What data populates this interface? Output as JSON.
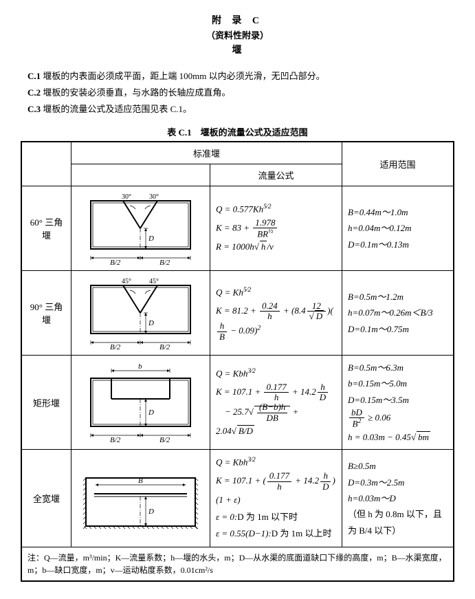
{
  "header": {
    "line1": "附 录 C",
    "line2": "（资料性附录）",
    "line3": "堰"
  },
  "clauses": [
    {
      "num": "C.1",
      "text": "堰板的内表面必须成平面，距上端 100mm 以内必须光滑，无凹凸部分。"
    },
    {
      "num": "C.2",
      "text": "堰板的安装必须垂直，与水路的长轴应成直角。"
    },
    {
      "num": "C.3",
      "text": "堰板的流量公式及适应范围见表 C.1。"
    }
  ],
  "table_title": "表 C.1　堰板的流量公式及适应范围",
  "columns": {
    "c1": "",
    "c2": "标准堰",
    "c3": "流量公式",
    "c4": "适用范围"
  },
  "rows": [
    {
      "label": "60° 三角堰",
      "diagram": {
        "type": "vnotch",
        "angle_label_left": "30°",
        "angle_label_right": "30°",
        "h_label": "D",
        "b_label_left": "B/2",
        "b_label_right": "B/2"
      },
      "formulas_html": "Q = 0.577Kh<sup>5⁄2</sup><br>K = 83 + <span class='frac'><span class='num'>1.978</span><span class='den'>BR<sup>½</sup></span></span><br>R = 1000h<span class='radic'>√</span><span class='sqrt'>h</span>/v",
      "range_html": "B=0.44m～1.0m<br>h=0.04m～0.12m<br>D=0.1m～0.13m"
    },
    {
      "label": "90° 三角堰",
      "diagram": {
        "type": "vnotch",
        "angle_label_left": "45°",
        "angle_label_right": "45°",
        "h_label": "D",
        "b_label_left": "B/2",
        "b_label_right": "B/2"
      },
      "formulas_html": "Q = Kh<sup>5⁄2</sup><br>K = 81.2 + <span class='frac'><span class='num'>0.24</span><span class='den'>h</span></span> + (8.4<span class='frac'><span class='num'>12</span><span class='den'><span class='radic'>√</span><span class='sqrt'>D</span></span></span>)(<span class='frac'><span class='num'>h</span><span class='den'>B</span></span> − 0.09)<sup>2</sup>",
      "range_html": "B=0.5m～1.2m<br>h=0.07m～0.26m＜B/3<br>D=0.1m～0.75m"
    },
    {
      "label": "矩形堰",
      "diagram": {
        "type": "rect",
        "top_label": "b",
        "h_label": "D",
        "b_label_left": "B/2",
        "b_label_right": "B/2"
      },
      "formulas_html": "Q = Kbh<sup>3⁄2</sup><br>K = 107.1 + <span class='frac'><span class='num'>0.177</span><span class='den'>h</span></span> + 14.2<span class='frac'><span class='num'>h</span><span class='den'>D</span></span><br>&nbsp;&nbsp;&nbsp;&nbsp;− 25.7<span class='radic'>√</span><span class='sqrt'><span class='frac'><span class='num'>(B−b)h</span><span class='den'>DB</span></span></span> + 2.04<span class='radic'>√</span><span class='sqrt'>B/D</span>",
      "range_html": "B=0.5m～6.3m<br>b=0.15m～5.0m<br>D=0.15m～3.5m<br><span class='frac'><span class='num'>bD</span><span class='den'>B<sup>2</sup></span></span> ≥ 0.06<br>h = 0.03m − 0.45<span class='radic'>√</span><span class='sqrt'>bm</span>"
    },
    {
      "label": "全宽堰",
      "diagram": {
        "type": "fullwidth",
        "top_label": "B",
        "h_label": "D"
      },
      "formulas_html": "Q = Kbh<sup>3⁄2</sup><br>K = 107.1 + (<span class='frac'><span class='num'>0.177</span><span class='den'>h</span></span> + 14.2<span class='frac'><span class='num'>h</span><span class='den'>D</span></span>)(1 + ε)<br>ε = 0:<span class='roman'>D 为 1m 以下时</span><br>ε = 0.55(D−1):<span class='roman'>D 为 1m 以上时</span>",
      "range_html": "B≥0.5m<br>D=0.3m～2.5m<br>h=0.03m～D<br><span class='cn'>（但 h 为 0.8m 以下，且为 B/4 以下）</span>"
    }
  ],
  "footnote": "注：Q—流量，m³/min；K—流量系数；h—堰的水头，m；D—从水渠的底面道缺口下缘的高度，m；B—水渠宽度，m；b—缺口宽度，m；v—运动粘度系数，0.01cm²/s",
  "style": {
    "border_color": "#000000",
    "bg_color": "#ffffff",
    "text_color": "#000000",
    "font_body": "SimSun",
    "font_math": "Times New Roman",
    "watermark_color": "rgba(100,120,200,0.06)"
  }
}
